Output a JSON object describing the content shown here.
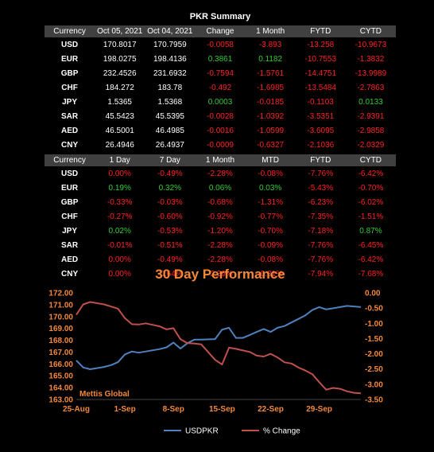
{
  "summary": {
    "title": "PKR Summary",
    "headers": [
      "Currency",
      "Oct 05, 2021",
      "Oct 04, 2021",
      "Change",
      "1 Month",
      "FYTD",
      "CYTD"
    ],
    "rows": [
      [
        "USD",
        "170.8017",
        "170.7959",
        "-0.0058",
        "-3.893",
        "-13.258",
        "-10.9673"
      ],
      [
        "EUR",
        "198.0275",
        "198.4136",
        "0.3861",
        "0.1182",
        "-10.7553",
        "-1.3832"
      ],
      [
        "GBP",
        "232.4526",
        "231.6932",
        "-0.7594",
        "-1.5761",
        "-14.4751",
        "-13.9989"
      ],
      [
        "CHF",
        "184.272",
        "183.78",
        "-0.492",
        "-1.6985",
        "-13.5484",
        "-2.7863"
      ],
      [
        "JPY",
        "1.5365",
        "1.5368",
        "0.0003",
        "-0.0185",
        "-0.1103",
        "0.0133"
      ],
      [
        "SAR",
        "45.5423",
        "45.5395",
        "-0.0028",
        "-1.0392",
        "-3.5351",
        "-2.9391"
      ],
      [
        "AED",
        "46.5001",
        "46.4985",
        "-0.0016",
        "-1.0599",
        "-3.6095",
        "-2.9858"
      ],
      [
        "CNY",
        "26.4946",
        "26.4937",
        "-0.0009",
        "-0.6327",
        "-2.1036",
        "-2.0329"
      ]
    ]
  },
  "percent": {
    "headers": [
      "Currency",
      "1 Day",
      "7 Day",
      "1 Month",
      "MTD",
      "FYTD",
      "CYTD"
    ],
    "rows": [
      [
        "USD",
        "0.00%",
        "-0.49%",
        "-2.28%",
        "-0.08%",
        "-7.76%",
        "-6.42%"
      ],
      [
        "EUR",
        "0.19%",
        "0.32%",
        "0.06%",
        "0.03%",
        "-5.43%",
        "-0.70%"
      ],
      [
        "GBP",
        "-0.33%",
        "-0.03%",
        "-0.68%",
        "-1.31%",
        "-6.23%",
        "-6.02%"
      ],
      [
        "CHF",
        "-0.27%",
        "-0.60%",
        "-0.92%",
        "-0.77%",
        "-7.35%",
        "-1.51%"
      ],
      [
        "JPY",
        "0.02%",
        "-0.53%",
        "-1.20%",
        "-0.70%",
        "-7.18%",
        "0.87%"
      ],
      [
        "SAR",
        "-0.01%",
        "-0.51%",
        "-2.28%",
        "-0.09%",
        "-7.76%",
        "-6.45%"
      ],
      [
        "AED",
        "0.00%",
        "-0.49%",
        "-2.28%",
        "-0.08%",
        "-7.76%",
        "-6.42%"
      ],
      [
        "CNY",
        "0.00%",
        "-0.64%",
        "-2.39%",
        "-0.31%",
        "-7.94%",
        "-7.68%"
      ]
    ]
  },
  "colors": {
    "positive": "#33cc33",
    "negative": "#ff2222",
    "header_bg": "#404040",
    "accent": "#f4883a"
  },
  "chart_data": {
    "type": "line",
    "title": "30 Day Performance",
    "watermark": "Mettis Global",
    "x_ticks": [
      "25-Aug",
      "1-Sep",
      "8-Sep",
      "15-Sep",
      "22-Sep",
      "29-Sep"
    ],
    "x_range": [
      0,
      41
    ],
    "y_left": {
      "ticks": [
        "163.00",
        "164.00",
        "165.00",
        "166.00",
        "167.00",
        "168.00",
        "169.00",
        "170.00",
        "171.00",
        "172.00"
      ],
      "range": [
        163,
        172
      ]
    },
    "y_right": {
      "ticks": [
        "0.00",
        "-0.50",
        "-1.00",
        "-1.50",
        "-2.00",
        "-2.50",
        "-3.00",
        "-3.50"
      ],
      "range": [
        -3.5,
        0
      ]
    },
    "legend_position": "bottom",
    "series": [
      {
        "name": "USDPKR",
        "axis": "left",
        "color": "#4f81bd",
        "x": [
          0,
          1,
          2,
          4,
          5,
          6,
          7,
          8,
          9,
          10,
          11,
          12,
          13,
          14,
          15,
          16,
          17,
          18,
          20,
          21,
          22,
          23,
          24,
          25,
          26,
          27,
          28,
          29,
          30,
          31,
          32,
          33,
          34,
          35,
          36,
          37,
          38,
          39,
          40,
          41
        ],
        "y": [
          166.3,
          165.7,
          165.55,
          165.75,
          165.9,
          166.15,
          166.8,
          167.05,
          166.95,
          167.05,
          167.15,
          167.25,
          167.4,
          167.8,
          167.3,
          167.75,
          168.05,
          168.05,
          168.1,
          168.9,
          169.05,
          168.2,
          168.2,
          168.45,
          168.7,
          168.95,
          168.7,
          169.05,
          169.2,
          169.5,
          169.8,
          170.1,
          170.55,
          170.8,
          170.6,
          170.7,
          170.8,
          170.9,
          170.85,
          170.8
        ]
      },
      {
        "name": "% Change",
        "axis": "right",
        "color": "#c0504d",
        "x": [
          0,
          1,
          2,
          4,
          5,
          6,
          7,
          8,
          9,
          10,
          11,
          12,
          13,
          14,
          15,
          16,
          17,
          18,
          20,
          21,
          22,
          23,
          24,
          25,
          26,
          27,
          28,
          29,
          30,
          31,
          32,
          33,
          34,
          35,
          36,
          37,
          38,
          39,
          40,
          41
        ],
        "y": [
          -0.72,
          -0.38,
          -0.3,
          -0.38,
          -0.45,
          -0.52,
          -0.83,
          -1.03,
          -1.04,
          -1.0,
          -1.05,
          -1.1,
          -1.2,
          -1.16,
          -1.52,
          -1.65,
          -1.66,
          -1.69,
          -2.2,
          -2.35,
          -1.8,
          -1.84,
          -1.89,
          -1.94,
          -2.06,
          -2.09,
          -2.0,
          -2.12,
          -2.28,
          -2.32,
          -2.45,
          -2.55,
          -2.67,
          -2.93,
          -3.18,
          -3.12,
          -3.15,
          -3.23,
          -3.28,
          -3.3
        ]
      }
    ]
  }
}
